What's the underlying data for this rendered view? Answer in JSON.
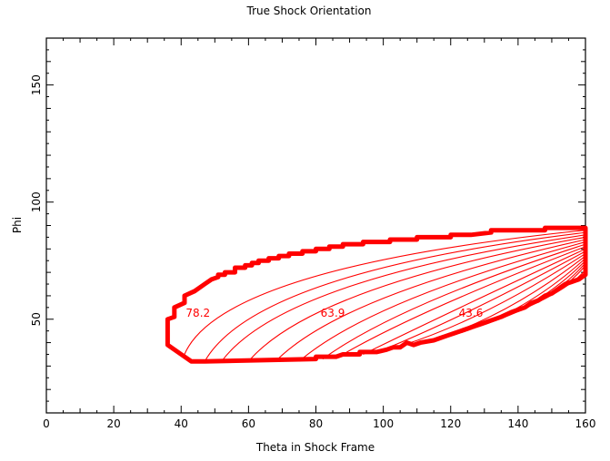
{
  "chart_data": {
    "type": "contour",
    "title": "True Shock Orientation",
    "xlabel": "Theta in Shock Frame",
    "ylabel": "Phi",
    "xlim": [
      0,
      160
    ],
    "ylim": [
      10,
      170
    ],
    "xticks": [
      0,
      20,
      40,
      60,
      80,
      100,
      120,
      140,
      160
    ],
    "yticks": [
      50,
      100,
      150
    ],
    "grid": false,
    "line_color": "#ff0000",
    "contour_labels": [
      {
        "text": "78.2",
        "x": 45,
        "y": 51
      },
      {
        "text": "63.9",
        "x": 85,
        "y": 51
      },
      {
        "text": "43.6",
        "x": 126,
        "y": 51
      }
    ],
    "boundary": [
      [
        36,
        39
      ],
      [
        36,
        50
      ],
      [
        38,
        51
      ],
      [
        38,
        55
      ],
      [
        41,
        57
      ],
      [
        41,
        60
      ],
      [
        44,
        62
      ],
      [
        47,
        65
      ],
      [
        49,
        67
      ],
      [
        51,
        68
      ],
      [
        51,
        69
      ],
      [
        53,
        69
      ],
      [
        53,
        70
      ],
      [
        56,
        70
      ],
      [
        56,
        72
      ],
      [
        59,
        72
      ],
      [
        59,
        73
      ],
      [
        61,
        73
      ],
      [
        61,
        74
      ],
      [
        63,
        74
      ],
      [
        63,
        75
      ],
      [
        66,
        75
      ],
      [
        66,
        76
      ],
      [
        69,
        76
      ],
      [
        69,
        77
      ],
      [
        72,
        77
      ],
      [
        72,
        78
      ],
      [
        76,
        78
      ],
      [
        76,
        79
      ],
      [
        80,
        79
      ],
      [
        80,
        80
      ],
      [
        84,
        80
      ],
      [
        84,
        81
      ],
      [
        88,
        81
      ],
      [
        88,
        82
      ],
      [
        94,
        82
      ],
      [
        94,
        83
      ],
      [
        102,
        83
      ],
      [
        102,
        84
      ],
      [
        110,
        84
      ],
      [
        110,
        85
      ],
      [
        120,
        85
      ],
      [
        120,
        86
      ],
      [
        126,
        86
      ],
      [
        132,
        87
      ],
      [
        132,
        88
      ],
      [
        140,
        88
      ],
      [
        148,
        88
      ],
      [
        148,
        89
      ],
      [
        160,
        89
      ],
      [
        160,
        69
      ],
      [
        158,
        67
      ],
      [
        156,
        66
      ],
      [
        154,
        65
      ],
      [
        153,
        64
      ],
      [
        152,
        63
      ],
      [
        150,
        61
      ],
      [
        148,
        60
      ],
      [
        146,
        58
      ],
      [
        144,
        57
      ],
      [
        142,
        55
      ],
      [
        140,
        54
      ],
      [
        138,
        53
      ],
      [
        135,
        51
      ],
      [
        133,
        50
      ],
      [
        131,
        49
      ],
      [
        129,
        48
      ],
      [
        127,
        47
      ],
      [
        125,
        46
      ],
      [
        123,
        45
      ],
      [
        121,
        44
      ],
      [
        119,
        43
      ],
      [
        117,
        42
      ],
      [
        115,
        41
      ],
      [
        111,
        40
      ],
      [
        109,
        39
      ],
      [
        107,
        40
      ],
      [
        105,
        38
      ],
      [
        103,
        38
      ],
      [
        101,
        37
      ],
      [
        98,
        36
      ],
      [
        93,
        36
      ],
      [
        93,
        35
      ],
      [
        88,
        35
      ],
      [
        86,
        34
      ],
      [
        80,
        34
      ],
      [
        80,
        33
      ],
      [
        47,
        32
      ],
      [
        43,
        32
      ],
      [
        40,
        35
      ]
    ],
    "contours": [
      {
        "from": [
          41,
          35
        ],
        "ctrl": [
          52,
          72
        ],
        "to": [
          160,
          88
        ]
      },
      {
        "from": [
          47,
          32
        ],
        "ctrl": [
          62,
          70
        ],
        "to": [
          160,
          87
        ]
      },
      {
        "from": [
          52,
          32
        ],
        "ctrl": [
          70,
          67
        ],
        "to": [
          160,
          86
        ]
      },
      {
        "from": [
          60,
          32
        ],
        "ctrl": [
          79,
          64
        ],
        "to": [
          160,
          85
        ]
      },
      {
        "from": [
          68,
          32
        ],
        "ctrl": [
          88,
          61
        ],
        "to": [
          160,
          84
        ]
      },
      {
        "from": [
          75,
          32
        ],
        "ctrl": [
          96,
          58
        ],
        "to": [
          160,
          83
        ]
      },
      {
        "from": [
          82,
          33
        ],
        "ctrl": [
          104,
          56
        ],
        "to": [
          160,
          82
        ]
      },
      {
        "from": [
          88,
          35
        ],
        "ctrl": [
          111,
          54
        ],
        "to": [
          160,
          81
        ]
      },
      {
        "from": [
          94,
          35
        ],
        "ctrl": [
          118,
          52
        ],
        "to": [
          160,
          80
        ]
      },
      {
        "from": [
          100,
          37
        ],
        "ctrl": [
          124,
          51
        ],
        "to": [
          160,
          79
        ]
      },
      {
        "from": [
          106,
          39
        ],
        "ctrl": [
          130,
          50
        ],
        "to": [
          160,
          78
        ]
      },
      {
        "from": [
          112,
          40
        ],
        "ctrl": [
          136,
          50
        ],
        "to": [
          160,
          77
        ]
      },
      {
        "from": [
          118,
          42
        ],
        "ctrl": [
          141,
          51
        ],
        "to": [
          160,
          76
        ]
      },
      {
        "from": [
          124,
          45
        ],
        "ctrl": [
          145,
          53
        ],
        "to": [
          160,
          75
        ]
      },
      {
        "from": [
          130,
          48
        ],
        "ctrl": [
          149,
          56
        ],
        "to": [
          160,
          74
        ]
      },
      {
        "from": [
          137,
          52
        ],
        "ctrl": [
          152,
          59
        ],
        "to": [
          160,
          73
        ]
      },
      {
        "from": [
          144,
          56
        ],
        "ctrl": [
          155,
          63
        ],
        "to": [
          160,
          71
        ]
      }
    ]
  }
}
